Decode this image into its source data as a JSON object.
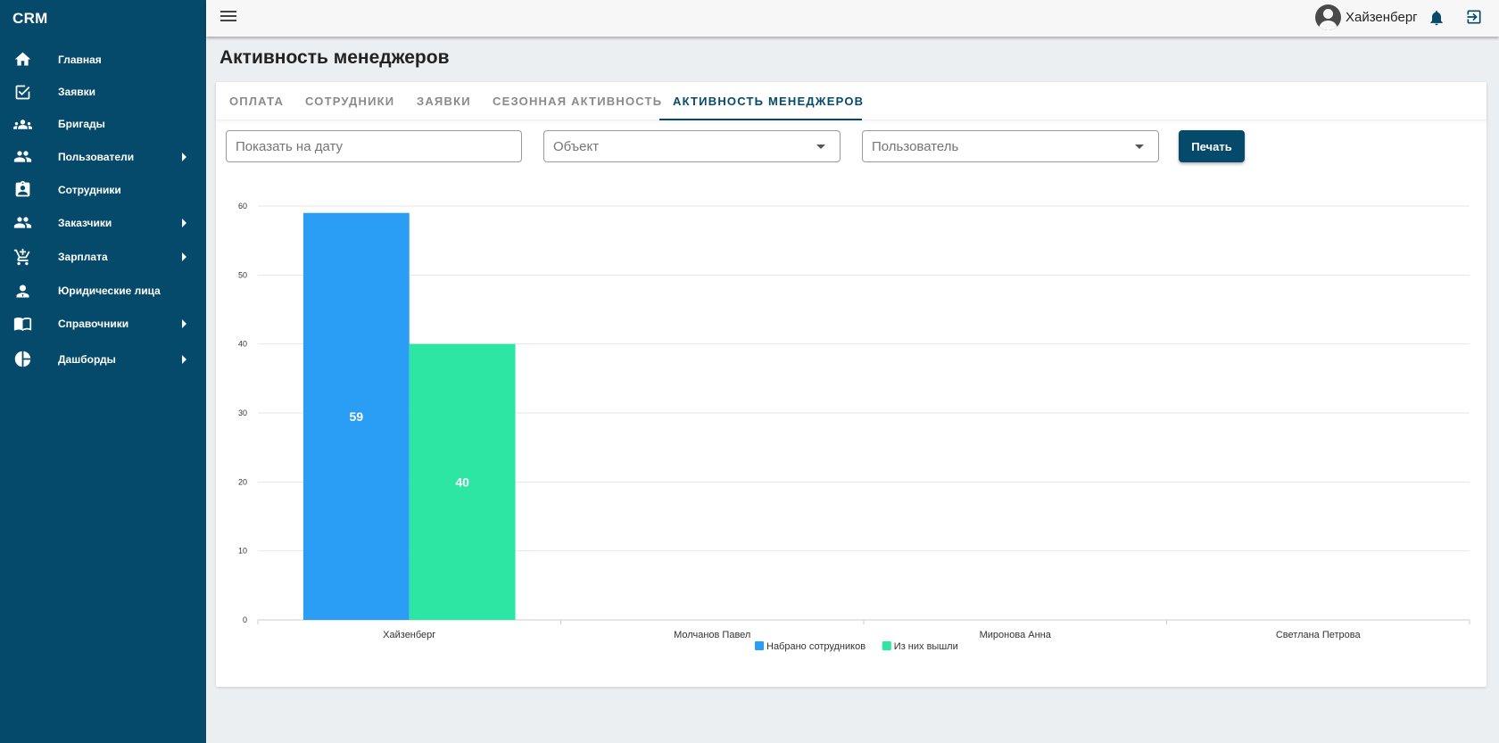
{
  "app": {
    "brand": "CRM"
  },
  "sidebar": {
    "items": [
      {
        "label": "Главная",
        "icon": "home-icon",
        "submenu": false
      },
      {
        "label": "Заявки",
        "icon": "checkbox-icon",
        "submenu": false
      },
      {
        "label": "Бригады",
        "icon": "group-icon",
        "submenu": false
      },
      {
        "label": "Пользователи",
        "icon": "people-icon",
        "submenu": true
      },
      {
        "label": "Сотрудники",
        "icon": "badge-icon",
        "submenu": false
      },
      {
        "label": "Заказчики",
        "icon": "people-icon",
        "submenu": true
      },
      {
        "label": "Зарплата",
        "icon": "cart-icon",
        "submenu": true
      },
      {
        "label": "Юридические лица",
        "icon": "person-tie-icon",
        "submenu": false
      },
      {
        "label": "Справочники",
        "icon": "book-icon",
        "submenu": true
      },
      {
        "label": "Дашборды",
        "icon": "pie-chart-icon",
        "submenu": true
      }
    ]
  },
  "header": {
    "user_name": "Хайзенберг"
  },
  "page": {
    "title": "Активность менеджеров"
  },
  "tabs": [
    {
      "label": "ОПЛАТА",
      "active": false
    },
    {
      "label": "СОТРУДНИКИ",
      "active": false
    },
    {
      "label": "ЗАЯВКИ",
      "active": false
    },
    {
      "label": "СЕЗОННАЯ АКТИВНОСТЬ",
      "active": false
    },
    {
      "label": "АКТИВНОСТЬ МЕНЕДЖЕРОВ",
      "active": true
    }
  ],
  "filters": {
    "date_placeholder": "Показать на дату",
    "object_placeholder": "Объект",
    "user_placeholder": "Пользователь",
    "print_label": "Печать"
  },
  "chart_data": {
    "type": "bar",
    "categories": [
      "Хайзенберг",
      "Молчанов Павел",
      "Миронова Анна",
      "Светлана Петрова"
    ],
    "series": [
      {
        "name": "Набрано сотрудников",
        "values": [
          59,
          0,
          0,
          0
        ],
        "color": "#2a9df4"
      },
      {
        "name": "Из них вышли",
        "values": [
          40,
          0,
          0,
          0
        ],
        "color": "#2de6a4"
      }
    ],
    "yticks": [
      0,
      10,
      20,
      30,
      40,
      50,
      60
    ],
    "ylim": [
      0,
      60
    ],
    "grid": true,
    "legend": "bottom",
    "title": "",
    "xlabel": "",
    "ylabel": ""
  }
}
